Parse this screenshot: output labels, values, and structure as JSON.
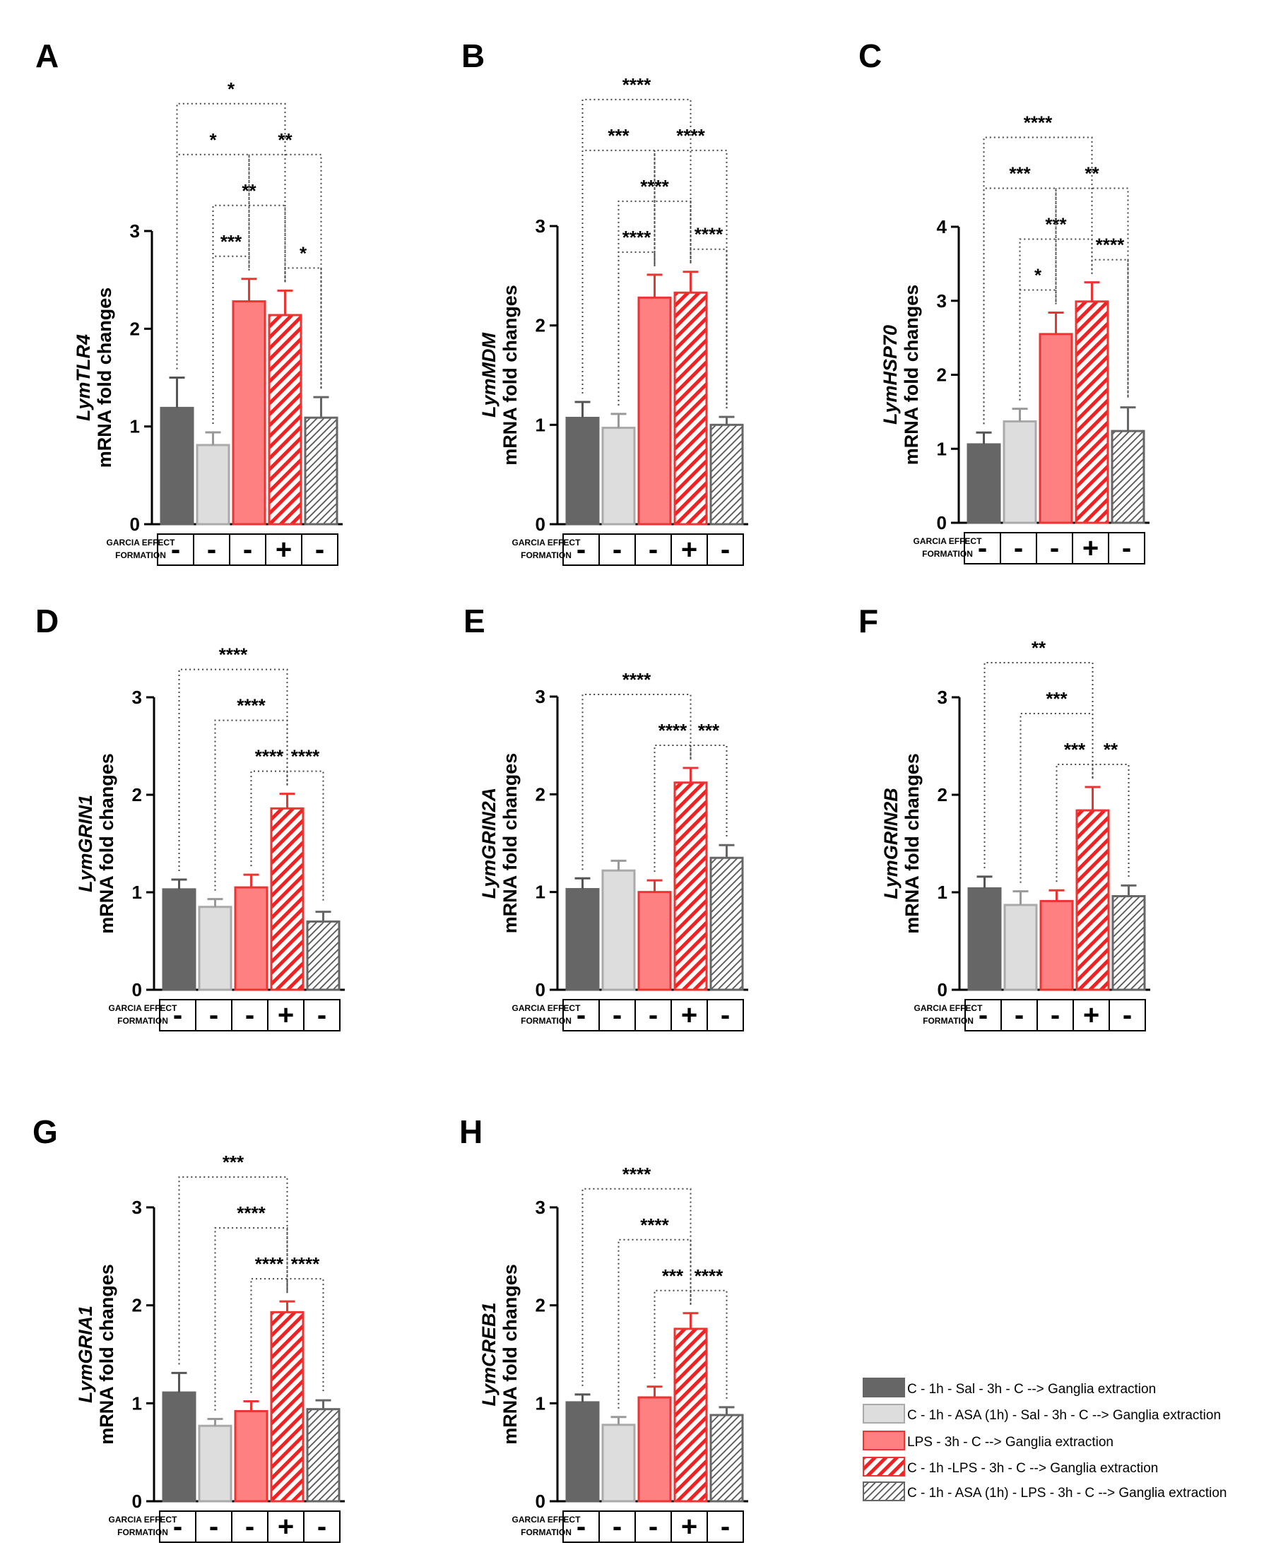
{
  "colors": {
    "dark_grey": "#666666",
    "light_grey": "#dddddd",
    "red_fill": "#ff8080",
    "red_stroke": "#ee3333",
    "hatch_red": "#ee2222",
    "hatch_grey": "#555555"
  },
  "garcia_label_line1": "GARCIA EFFECT",
  "garcia_label_line2": "FORMATION",
  "garcia_effect": [
    "-",
    "-",
    "-",
    "+",
    "-"
  ],
  "legend": [
    {
      "style": "dark",
      "label": "C - 1h - Sal - 3h - C  --> Ganglia extraction"
    },
    {
      "style": "light",
      "label": " C - 1h - ASA (1h) - Sal - 3h - C  --> Ganglia extraction"
    },
    {
      "style": "red",
      "label": " LPS  - 3h - C  --> Ganglia extraction"
    },
    {
      "style": "hatch-red",
      "label": "C - 1h -LPS  - 3h - C  --> Ganglia extraction"
    },
    {
      "style": "hatch-grey",
      "label": "C - 1h - ASA (1h) - LPS -  3h - C  --> Ganglia extraction"
    }
  ],
  "chart_data": [
    {
      "panel": "A",
      "type": "bar",
      "gene": "LymTLR4",
      "ylabel2": "mRNA fold changes",
      "ylim": [
        0,
        3
      ],
      "yticks": [
        0,
        1,
        2,
        3
      ],
      "values": [
        1.19,
        0.81,
        2.28,
        2.14,
        1.09
      ],
      "errors": [
        0.31,
        0.13,
        0.23,
        0.25,
        0.21
      ],
      "comparisons": [
        {
          "from": 0,
          "to": 3,
          "label": "*"
        },
        {
          "from": 1,
          "to": 3,
          "label": "**"
        },
        {
          "from": 0,
          "to": 2,
          "label": "*"
        },
        {
          "from": 2,
          "to": 4,
          "label": "**"
        },
        {
          "from": 1,
          "to": 2,
          "label": "***"
        },
        {
          "from": 3,
          "to": 4,
          "label": "*"
        }
      ]
    },
    {
      "panel": "B",
      "type": "bar",
      "gene": "LymMDM",
      "ylabel2": "mRNA fold changes",
      "ylim": [
        0,
        3
      ],
      "yticks": [
        0,
        1,
        2,
        3
      ],
      "values": [
        1.07,
        0.97,
        2.28,
        2.33,
        1.0
      ],
      "errors": [
        0.16,
        0.14,
        0.23,
        0.21,
        0.08
      ],
      "comparisons": [
        {
          "from": 0,
          "to": 3,
          "label": "****"
        },
        {
          "from": 1,
          "to": 3,
          "label": "****"
        },
        {
          "from": 0,
          "to": 2,
          "label": "***"
        },
        {
          "from": 2,
          "to": 4,
          "label": "****"
        },
        {
          "from": 1,
          "to": 2,
          "label": "****"
        },
        {
          "from": 3,
          "to": 4,
          "label": "****"
        }
      ]
    },
    {
      "panel": "C",
      "type": "bar",
      "gene": "LymHSP70",
      "ylabel2": "mRNA fold changes",
      "ylim": [
        0,
        4
      ],
      "yticks": [
        0,
        1,
        2,
        3,
        4
      ],
      "values": [
        1.06,
        1.37,
        2.55,
        2.99,
        1.24
      ],
      "errors": [
        0.16,
        0.17,
        0.29,
        0.26,
        0.32
      ],
      "comparisons": [
        {
          "from": 0,
          "to": 3,
          "label": "****"
        },
        {
          "from": 1,
          "to": 3,
          "label": "***"
        },
        {
          "from": 0,
          "to": 2,
          "label": "***"
        },
        {
          "from": 2,
          "to": 4,
          "label": "**"
        },
        {
          "from": 1,
          "to": 2,
          "label": "*"
        },
        {
          "from": 3,
          "to": 4,
          "label": "****"
        }
      ]
    },
    {
      "panel": "D",
      "type": "bar",
      "gene": "LymGRIN1",
      "ylabel2": "mRNA fold changes",
      "ylim": [
        0,
        3
      ],
      "yticks": [
        0,
        1,
        2,
        3
      ],
      "values": [
        1.03,
        0.85,
        1.05,
        1.86,
        0.7
      ],
      "errors": [
        0.1,
        0.08,
        0.13,
        0.15,
        0.1
      ],
      "comparisons": [
        {
          "from": 0,
          "to": 3,
          "label": "****"
        },
        {
          "from": 1,
          "to": 3,
          "label": "****"
        },
        {
          "from": 3,
          "to": 4,
          "label": "****"
        },
        {
          "from": 2,
          "to": 3,
          "label": "****"
        }
      ]
    },
    {
      "panel": "E",
      "type": "bar",
      "gene": "LymGRIN2A",
      "ylabel2": "mRNA fold changes",
      "ylim": [
        0,
        3
      ],
      "yticks": [
        0,
        1,
        2,
        3
      ],
      "values": [
        1.03,
        1.22,
        1.0,
        2.12,
        1.35
      ],
      "errors": [
        0.11,
        0.1,
        0.12,
        0.15,
        0.13
      ],
      "comparisons": [
        {
          "from": 0,
          "to": 3,
          "label": "****"
        },
        {
          "from": 3,
          "to": 4,
          "label": "***"
        },
        {
          "from": 2,
          "to": 3,
          "label": "****"
        }
      ]
    },
    {
      "panel": "F",
      "type": "bar",
      "gene": "LymGRIN2B",
      "ylabel2": "mRNA fold changes",
      "ylim": [
        0,
        3
      ],
      "yticks": [
        0,
        1,
        2,
        3
      ],
      "values": [
        1.04,
        0.87,
        0.91,
        1.84,
        0.96
      ],
      "errors": [
        0.12,
        0.14,
        0.11,
        0.24,
        0.11
      ],
      "comparisons": [
        {
          "from": 0,
          "to": 3,
          "label": "**"
        },
        {
          "from": 1,
          "to": 3,
          "label": "***"
        },
        {
          "from": 3,
          "to": 4,
          "label": "**"
        },
        {
          "from": 2,
          "to": 3,
          "label": "***"
        }
      ]
    },
    {
      "panel": "G",
      "type": "bar",
      "gene": "LymGRIA1",
      "ylabel2": "mRNA fold changes",
      "ylim": [
        0,
        3
      ],
      "yticks": [
        0,
        1,
        2,
        3
      ],
      "values": [
        1.11,
        0.77,
        0.92,
        1.93,
        0.94
      ],
      "errors": [
        0.2,
        0.07,
        0.1,
        0.11,
        0.09
      ],
      "comparisons": [
        {
          "from": 1,
          "to": 3,
          "label": "****"
        },
        {
          "from": 0,
          "to": 3,
          "label": "***"
        },
        {
          "from": 3,
          "to": 4,
          "label": "****"
        },
        {
          "from": 2,
          "to": 3,
          "label": "****"
        }
      ]
    },
    {
      "panel": "H",
      "type": "bar",
      "gene": "LymCREB1",
      "ylabel2": "mRNA fold changes",
      "ylim": [
        0,
        3
      ],
      "yticks": [
        0,
        1,
        2,
        3
      ],
      "values": [
        1.01,
        0.78,
        1.06,
        1.76,
        0.88
      ],
      "errors": [
        0.08,
        0.08,
        0.11,
        0.16,
        0.08
      ],
      "comparisons": [
        {
          "from": 1,
          "to": 3,
          "label": "****"
        },
        {
          "from": 0,
          "to": 3,
          "label": "****"
        },
        {
          "from": 3,
          "to": 4,
          "label": "****"
        },
        {
          "from": 2,
          "to": 3,
          "label": "***"
        }
      ]
    }
  ]
}
